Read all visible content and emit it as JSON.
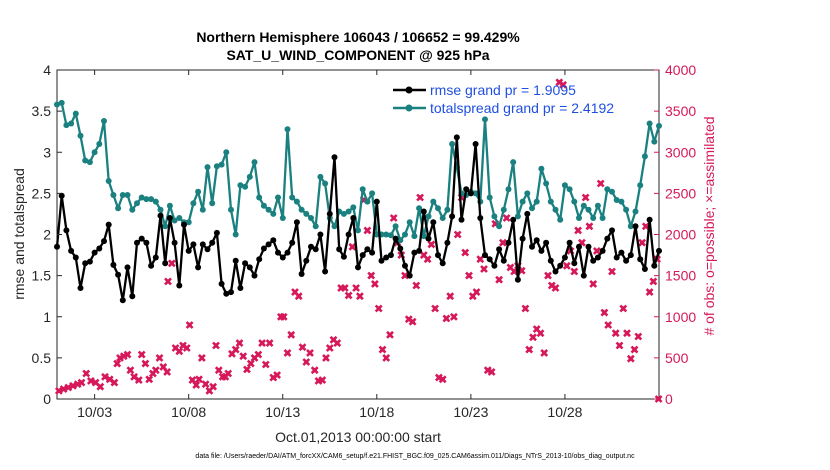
{
  "chart_data": {
    "type": "line",
    "title_line1": "Northern Hemisphere 106043 / 106652 = 99.429%",
    "title_line2": "SAT_U_WIND_COMPONENT @ 925 hPa",
    "xlabel": "Oct.01,2013 00:00:00 start",
    "ylabel_left": "rmse and totalspread",
    "ylabel_right": "# of obs: o=possible; ×=assimilated",
    "x_ticks": [
      "10/03",
      "10/08",
      "10/13",
      "10/18",
      "10/23",
      "10/28"
    ],
    "y_left_ticks": [
      "0",
      "0.5",
      "1",
      "1.5",
      "2",
      "2.5",
      "3",
      "3.5",
      "4"
    ],
    "y_right_ticks": [
      "0",
      "500",
      "1000",
      "1500",
      "2000",
      "2500",
      "3000",
      "3500",
      "4000"
    ],
    "xlim": [
      1,
      33
    ],
    "ylim_left": [
      0,
      4
    ],
    "ylim_right": [
      0,
      4000
    ],
    "footnote": "data file: /Users/raeder/DAI/ATM_forcXX/CAM6_setup/f.e21.FHIST_BGC.f09_025.CAM6assim.011/Diags_NTrS_2013-10/obs_diag_output.nc",
    "colors": {
      "rmse": "#000000",
      "spread": "#1a8080",
      "obs": "#d6195b",
      "legend_text": "#1f4fe0",
      "right_axis": "#d6195b"
    },
    "series": [
      {
        "name": "rmse grand pr = 1.9095",
        "key": "rmse",
        "values": [
          1.85,
          2.47,
          2.05,
          1.8,
          1.72,
          1.35,
          1.65,
          1.67,
          1.78,
          1.83,
          1.92,
          2.12,
          1.63,
          1.51,
          1.2,
          1.6,
          1.25,
          1.9,
          1.95,
          1.9,
          1.62,
          1.72,
          2.23,
          1.65,
          2.2,
          1.9,
          1.38,
          2.12,
          1.8,
          1.88,
          1.6,
          1.88,
          1.82,
          1.9,
          2.02,
          1.4,
          1.28,
          1.3,
          1.68,
          1.35,
          1.65,
          1.6,
          1.5,
          1.7,
          1.83,
          1.88,
          1.93,
          1.78,
          1.72,
          1.78,
          1.9,
          2.15,
          1.52,
          1.68,
          1.85,
          1.82,
          2.0,
          1.55,
          2.25,
          2.94,
          1.82,
          1.73,
          2.0,
          2.2,
          1.6,
          1.75,
          1.82,
          1.78,
          2.4,
          1.68,
          1.72,
          1.75,
          1.95,
          1.83,
          1.62,
          1.5,
          1.78,
          1.8,
          2.28,
          1.95,
          2.15,
          1.75,
          1.65,
          1.9,
          2.22,
          3.18,
          2.18,
          2.55,
          2.5,
          3.1,
          2.2,
          1.75,
          1.7,
          1.62,
          1.82,
          1.68,
          1.9,
          2.18,
          1.45,
          1.95,
          2.25,
          1.85,
          1.93,
          1.8,
          1.9,
          1.68,
          1.55,
          1.62,
          1.72,
          1.9,
          1.65,
          1.85,
          1.5,
          1.85,
          1.68,
          1.72,
          1.8,
          1.95,
          2.05,
          1.72,
          1.78,
          1.68,
          1.75,
          2.1,
          1.7,
          1.58,
          2.18,
          1.62,
          1.8
        ]
      },
      {
        "name": "totalspread grand pr = 2.4192",
        "key": "spread",
        "values": [
          3.58,
          3.6,
          3.33,
          3.35,
          3.47,
          3.2,
          2.9,
          2.88,
          3.0,
          3.1,
          3.38,
          2.65,
          2.48,
          2.32,
          2.48,
          2.48,
          2.3,
          2.38,
          2.45,
          2.43,
          2.43,
          2.4,
          2.3,
          2.1,
          2.35,
          2.17,
          2.2,
          2.15,
          2.15,
          2.38,
          2.52,
          2.3,
          2.82,
          2.38,
          2.83,
          2.85,
          3.0,
          2.3,
          2.0,
          2.6,
          2.58,
          2.7,
          2.88,
          2.45,
          2.35,
          2.3,
          2.25,
          2.45,
          2.2,
          3.28,
          2.45,
          2.4,
          2.3,
          2.25,
          2.2,
          2.1,
          2.7,
          2.62,
          2.2,
          2.1,
          2.28,
          2.25,
          2.28,
          2.33,
          2.05,
          2.55,
          2.4,
          2.5,
          2.0,
          2.0,
          2.0,
          1.99,
          2.1,
          1.93,
          2.0,
          2.15,
          1.98,
          2.32,
          1.98,
          2.22,
          2.4,
          2.32,
          2.2,
          2.3,
          3.1,
          2.82,
          2.5,
          2.48,
          2.52,
          2.5,
          2.4,
          3.4,
          2.45,
          2.22,
          2.1,
          2.3,
          2.55,
          2.88,
          2.22,
          2.4,
          2.5,
          2.32,
          2.4,
          2.8,
          2.62,
          2.4,
          2.3,
          2.18,
          2.6,
          2.55,
          2.4,
          2.2,
          2.35,
          2.3,
          2.2,
          2.35,
          2.2,
          2.55,
          2.52,
          2.42,
          2.4,
          2.3,
          2.1,
          2.28,
          2.6,
          2.95,
          3.35,
          3.13,
          3.32
        ]
      }
    ],
    "obs_points": [
      [
        1.1,
        100
      ],
      [
        1.35,
        120
      ],
      [
        1.6,
        140
      ],
      [
        1.85,
        160
      ],
      [
        2.1,
        180
      ],
      [
        2.3,
        200
      ],
      [
        2.55,
        310
      ],
      [
        2.8,
        220
      ],
      [
        3.05,
        200
      ],
      [
        3.3,
        150
      ],
      [
        3.55,
        270
      ],
      [
        3.8,
        240
      ],
      [
        4.05,
        200
      ],
      [
        4.2,
        430
      ],
      [
        4.35,
        500
      ],
      [
        4.55,
        520
      ],
      [
        4.75,
        540
      ],
      [
        4.9,
        350
      ],
      [
        5.1,
        270
      ],
      [
        5.35,
        230
      ],
      [
        5.5,
        540
      ],
      [
        5.7,
        430
      ],
      [
        5.9,
        240
      ],
      [
        6.1,
        310
      ],
      [
        6.25,
        350
      ],
      [
        6.45,
        500
      ],
      [
        6.65,
        390
      ],
      [
        6.85,
        330
      ],
      [
        6.9,
        1430
      ],
      [
        7.1,
        1650
      ],
      [
        7.3,
        620
      ],
      [
        7.5,
        580
      ],
      [
        7.7,
        650
      ],
      [
        7.9,
        620
      ],
      [
        8.05,
        900
      ],
      [
        8.2,
        230
      ],
      [
        8.4,
        170
      ],
      [
        8.55,
        240
      ],
      [
        8.7,
        500
      ],
      [
        8.9,
        180
      ],
      [
        9.1,
        100
      ],
      [
        9.3,
        150
      ],
      [
        9.45,
        650
      ],
      [
        9.6,
        350
      ],
      [
        9.8,
        270
      ],
      [
        9.95,
        270
      ],
      [
        10.1,
        310
      ],
      [
        10.3,
        550
      ],
      [
        10.5,
        600
      ],
      [
        10.7,
        680
      ],
      [
        10.9,
        520
      ],
      [
        11.1,
        360
      ],
      [
        11.3,
        430
      ],
      [
        11.5,
        500
      ],
      [
        11.7,
        540
      ],
      [
        11.9,
        680
      ],
      [
        12.1,
        420
      ],
      [
        12.3,
        680
      ],
      [
        12.5,
        260
      ],
      [
        12.7,
        290
      ],
      [
        12.9,
        1000
      ],
      [
        13.05,
        1000
      ],
      [
        13.25,
        560
      ],
      [
        13.45,
        780
      ],
      [
        13.65,
        1300
      ],
      [
        13.85,
        1250
      ],
      [
        14.05,
        630
      ],
      [
        14.25,
        450
      ],
      [
        14.45,
        560
      ],
      [
        14.7,
        350
      ],
      [
        14.9,
        220
      ],
      [
        15.1,
        230
      ],
      [
        15.3,
        500
      ],
      [
        15.5,
        620
      ],
      [
        15.7,
        720
      ],
      [
        15.9,
        680
      ],
      [
        16.1,
        1350
      ],
      [
        16.3,
        1350
      ],
      [
        16.5,
        1260
      ],
      [
        16.7,
        1850
      ],
      [
        16.9,
        1350
      ],
      [
        17.1,
        1250
      ],
      [
        17.3,
        2420
      ],
      [
        17.5,
        2050
      ],
      [
        17.7,
        1500
      ],
      [
        17.9,
        1400
      ],
      [
        18.1,
        1100
      ],
      [
        18.3,
        600
      ],
      [
        18.5,
        500
      ],
      [
        18.7,
        780
      ],
      [
        18.9,
        2200
      ],
      [
        19.1,
        1900
      ],
      [
        19.3,
        1750
      ],
      [
        19.5,
        1500
      ],
      [
        19.7,
        970
      ],
      [
        19.9,
        940
      ],
      [
        20.1,
        1380
      ],
      [
        20.3,
        2450
      ],
      [
        20.5,
        1750
      ],
      [
        20.7,
        1700
      ],
      [
        20.9,
        1880
      ],
      [
        21.1,
        1100
      ],
      [
        21.3,
        260
      ],
      [
        21.5,
        240
      ],
      [
        21.7,
        980
      ],
      [
        21.9,
        1250
      ],
      [
        22.1,
        1000
      ],
      [
        22.3,
        2000
      ],
      [
        22.5,
        2450
      ],
      [
        22.7,
        1780
      ],
      [
        22.9,
        1500
      ],
      [
        23.1,
        1250
      ],
      [
        23.3,
        1300
      ],
      [
        23.5,
        1700
      ],
      [
        23.7,
        1580
      ],
      [
        23.9,
        350
      ],
      [
        24.1,
        330
      ],
      [
        24.3,
        2130
      ],
      [
        24.5,
        1450
      ],
      [
        24.7,
        1900
      ],
      [
        24.9,
        2200
      ],
      [
        25.1,
        1600
      ],
      [
        25.3,
        1550
      ],
      [
        25.5,
        1620
      ],
      [
        25.7,
        1560
      ],
      [
        25.9,
        1100
      ],
      [
        26.1,
        600
      ],
      [
        26.3,
        750
      ],
      [
        26.5,
        850
      ],
      [
        26.7,
        800
      ],
      [
        26.9,
        560
      ],
      [
        27.1,
        1500
      ],
      [
        27.3,
        1380
      ],
      [
        27.5,
        1350
      ],
      [
        27.7,
        3850
      ],
      [
        27.9,
        3820
      ],
      [
        28.1,
        1620
      ],
      [
        28.3,
        1800
      ],
      [
        28.5,
        1550
      ],
      [
        28.7,
        2050
      ],
      [
        28.9,
        1900
      ],
      [
        29.1,
        2450
      ],
      [
        29.3,
        2100
      ],
      [
        29.5,
        1400
      ],
      [
        29.7,
        1800
      ],
      [
        29.9,
        2620
      ],
      [
        30.1,
        1050
      ],
      [
        30.3,
        900
      ],
      [
        30.5,
        1550
      ],
      [
        30.7,
        800
      ],
      [
        30.9,
        650
      ],
      [
        31.1,
        1100
      ],
      [
        31.3,
        800
      ],
      [
        31.5,
        490
      ],
      [
        31.7,
        600
      ],
      [
        31.9,
        760
      ],
      [
        32.1,
        1900
      ],
      [
        32.3,
        2100
      ],
      [
        32.5,
        1300
      ],
      [
        32.7,
        1430
      ],
      [
        32.9,
        1700
      ],
      [
        32.98,
        0
      ]
    ]
  }
}
